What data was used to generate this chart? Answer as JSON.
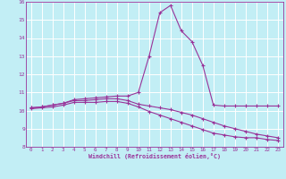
{
  "xlabel": "Windchill (Refroidissement éolien,°C)",
  "bg_color": "#c2eef5",
  "line_color": "#993399",
  "grid_color": "#ffffff",
  "xlim": [
    -0.5,
    23.5
  ],
  "ylim": [
    8,
    16
  ],
  "xticks": [
    0,
    1,
    2,
    3,
    4,
    5,
    6,
    7,
    8,
    9,
    10,
    11,
    12,
    13,
    14,
    15,
    16,
    17,
    18,
    19,
    20,
    21,
    22,
    23
  ],
  "yticks": [
    8,
    9,
    10,
    11,
    12,
    13,
    14,
    15,
    16
  ],
  "line1_x": [
    0,
    1,
    2,
    3,
    4,
    5,
    6,
    7,
    8,
    9,
    10,
    11,
    12,
    13,
    14,
    15,
    16,
    17,
    18,
    19,
    20,
    21,
    22,
    23
  ],
  "line1_y": [
    10.15,
    10.2,
    10.3,
    10.4,
    10.6,
    10.65,
    10.7,
    10.75,
    10.8,
    10.8,
    11.0,
    13.0,
    15.4,
    15.8,
    14.4,
    13.8,
    12.5,
    10.3,
    10.25,
    10.25,
    10.25,
    10.25,
    10.25,
    10.25
  ],
  "line2_x": [
    0,
    1,
    2,
    3,
    4,
    5,
    6,
    7,
    8,
    9,
    10,
    11,
    12,
    13,
    14,
    15,
    16,
    17,
    18,
    19,
    20,
    21,
    22,
    23
  ],
  "line2_y": [
    10.15,
    10.2,
    10.3,
    10.4,
    10.55,
    10.55,
    10.6,
    10.65,
    10.65,
    10.55,
    10.35,
    10.25,
    10.15,
    10.05,
    9.9,
    9.75,
    9.55,
    9.35,
    9.15,
    9.0,
    8.85,
    8.7,
    8.6,
    8.5
  ],
  "line3_x": [
    0,
    1,
    2,
    3,
    4,
    5,
    6,
    7,
    8,
    9,
    10,
    11,
    12,
    13,
    14,
    15,
    16,
    17,
    18,
    19,
    20,
    21,
    22,
    23
  ],
  "line3_y": [
    10.1,
    10.15,
    10.2,
    10.3,
    10.45,
    10.45,
    10.45,
    10.5,
    10.5,
    10.4,
    10.2,
    9.95,
    9.75,
    9.55,
    9.35,
    9.15,
    8.95,
    8.75,
    8.65,
    8.55,
    8.5,
    8.5,
    8.4,
    8.35
  ]
}
